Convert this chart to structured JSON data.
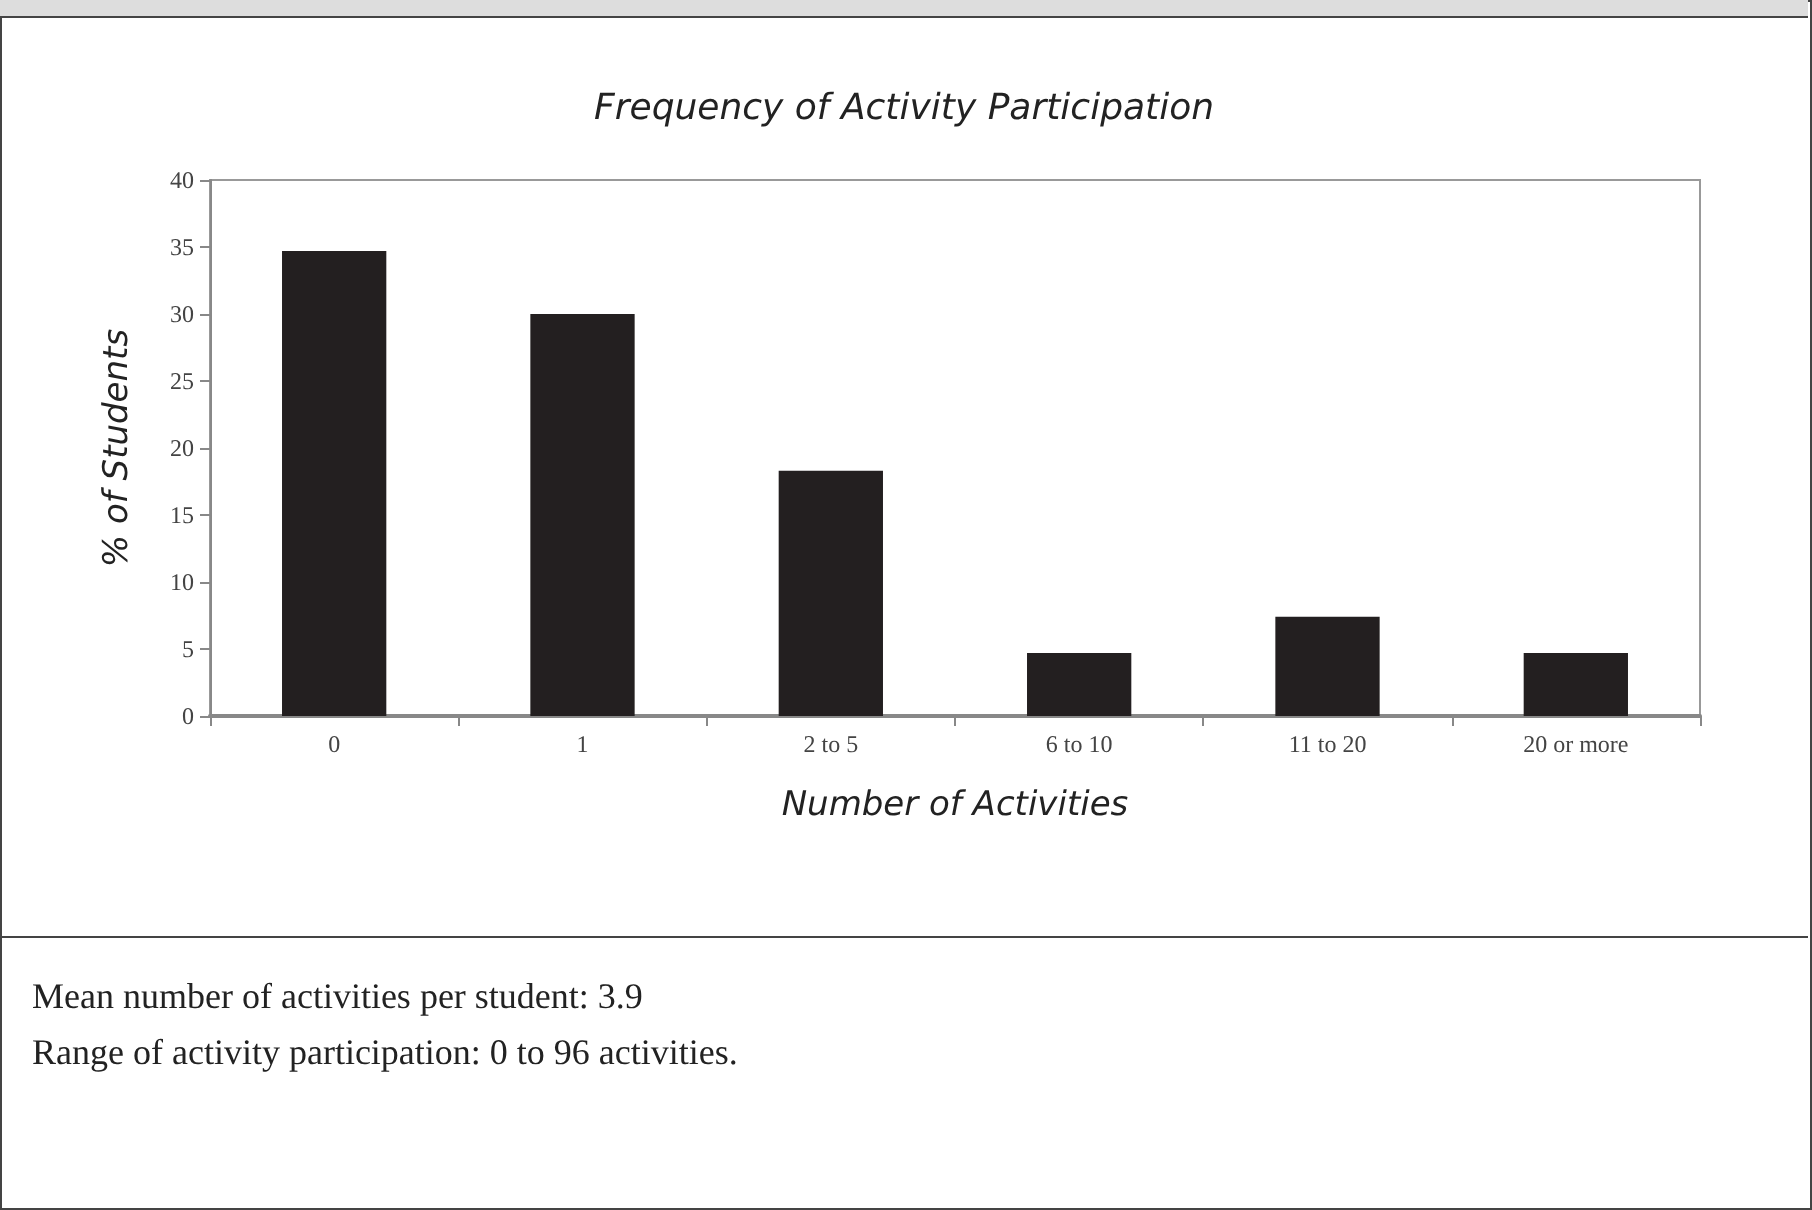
{
  "chart_data": {
    "type": "bar",
    "title": "Frequency of Activity Participation",
    "xlabel": "Number of Activities",
    "ylabel": "% of Students",
    "categories": [
      "0",
      "1",
      "2 to 5",
      "6 to 10",
      "11 to 20",
      "20 or more"
    ],
    "values": [
      34.7,
      30,
      18.3,
      4.7,
      7.4,
      4.7
    ],
    "color": "#231f20",
    "ylim": [
      0,
      40
    ],
    "yticks": [
      0,
      5,
      10,
      15,
      20,
      25,
      30,
      35,
      40
    ],
    "grid": false,
    "annotations": [
      "Mean number of activities per student: 3.9",
      "Range of activity participation: 0 to 96 activities."
    ]
  }
}
